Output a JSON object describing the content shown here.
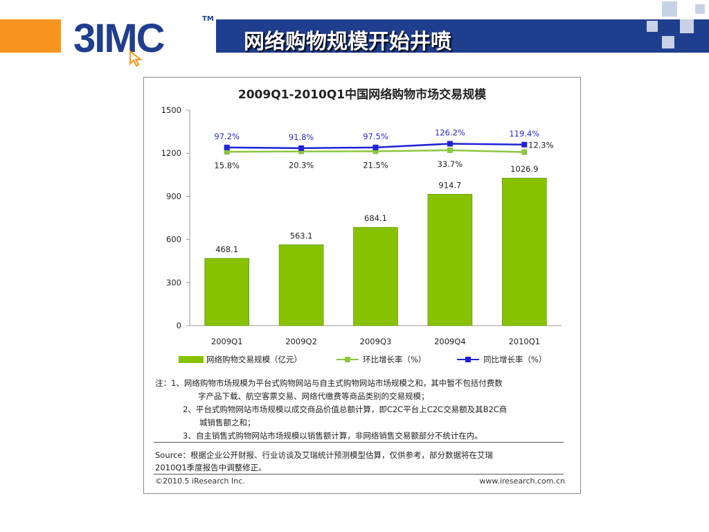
{
  "slide": {
    "title": "网络购物规模开始井喷",
    "logo_text": "3IMC",
    "logo_tm": "TM",
    "colors": {
      "orange": "#f7941d",
      "navy": "#1f3e8e"
    }
  },
  "chart_data": {
    "type": "bar",
    "title": "2009Q1-2010Q1中国网络购物市场交易规模",
    "categories": [
      "2009Q1",
      "2009Q2",
      "2009Q3",
      "2009Q4",
      "2010Q1"
    ],
    "ylim": [
      0,
      1500
    ],
    "yticks": [
      0,
      300,
      600,
      900,
      1200,
      1500
    ],
    "bar_color": "#86c200",
    "series": [
      {
        "name": "网络购物交易规模（亿元）",
        "type": "bar",
        "values": [
          468.1,
          563.1,
          684.1,
          914.7,
          1026.9
        ],
        "labels": [
          "468.1",
          "563.1",
          "684.1",
          "914.7",
          "1026.9"
        ]
      },
      {
        "name": "环比增长率（%）",
        "type": "line",
        "color": "#8cc63f",
        "values": [
          15.8,
          20.3,
          21.5,
          33.7,
          12.3
        ],
        "labels": [
          "15.8%",
          "20.3%",
          "21.5%",
          "33.7%",
          "12.3%"
        ]
      },
      {
        "name": "同比增长率（%）",
        "type": "line",
        "color": "#1f22d4",
        "values": [
          97.2,
          91.8,
          97.5,
          126.2,
          119.4
        ],
        "labels": [
          "97.2%",
          "91.8%",
          "97.5%",
          "126.2%",
          "119.4%"
        ]
      }
    ],
    "legend_placement": "bottom",
    "grid": false
  },
  "notes": {
    "line1": "注：1、网络购物市场规模为平台式购物网站与自主式购物网站市场规模之和，其中暂不包括付费数",
    "line1b": "字产品下载、航空客票交易、网络代缴费等商品类别的交易规模；",
    "line2": "2、平台式购物网站市场规模以成交商品价值总额计算，即C2C平台上C2C交易额及其B2C商",
    "line2b": "城销售额之和；",
    "line3": "3、自主销售式购物网站市场规模以销售额计算，非网络销售交易额部分不统计在内。"
  },
  "source": {
    "line1": "Source：根据企业公开财报、行业访谈及艾瑞统计预测模型估算，仅供参考，部分数据将在艾瑞",
    "line2": "2010Q1季度报告中调整修正。"
  },
  "footer": {
    "copyright": "©2010.5 iResearch Inc.",
    "url": "www.iresearch.com.cn"
  }
}
